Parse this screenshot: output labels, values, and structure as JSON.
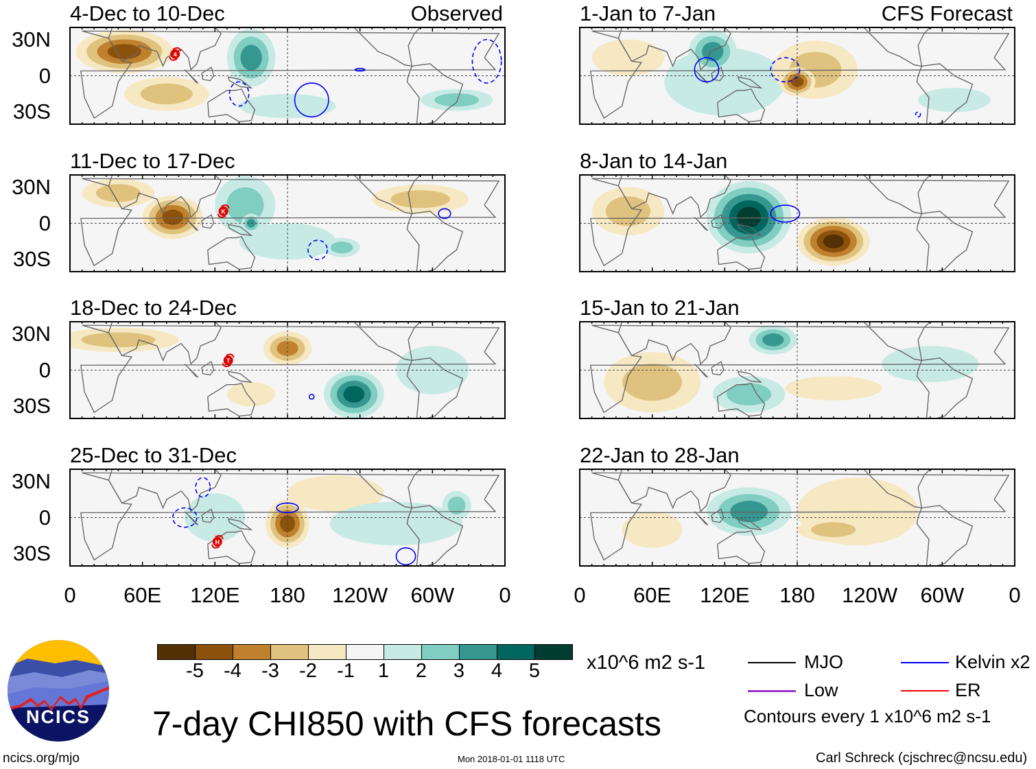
{
  "panels": [
    {
      "title": "4-Dec to 10-Dec",
      "tag": "Observed",
      "column": "left",
      "anomalies": [
        {
          "lon": 45,
          "lat": 20,
          "v": -4,
          "rx": 40,
          "ry": 18
        },
        {
          "lon": 80,
          "lat": -15,
          "v": -2,
          "rx": 35,
          "ry": 14
        },
        {
          "lon": 150,
          "lat": 15,
          "v": 3,
          "rx": 20,
          "ry": 24
        },
        {
          "lon": 180,
          "lat": -25,
          "v": 1,
          "rx": 40,
          "ry": 10
        },
        {
          "lon": 320,
          "lat": -20,
          "v": 2,
          "rx": 30,
          "ry": 9
        }
      ],
      "kelvin": [
        {
          "lon": 200,
          "lat": -20,
          "rx": 14,
          "ry": 14,
          "sign": "positive"
        },
        {
          "lon": 140,
          "lat": -15,
          "rx": 8,
          "ry": 10,
          "sign": "negative"
        },
        {
          "lon": 345,
          "lat": 12,
          "rx": 12,
          "ry": 18,
          "sign": "negative"
        },
        {
          "lon": 240,
          "lat": 5,
          "rx": 4,
          "ry": 1,
          "sign": "positive"
        }
      ],
      "storms": [
        {
          "lon": 87,
          "lat": 18,
          "label": "4"
        }
      ]
    },
    {
      "title": "11-Dec to 17-Dec",
      "tag": "",
      "column": "left",
      "anomalies": [
        {
          "lon": 85,
          "lat": 5,
          "v": -4,
          "rx": 25,
          "ry": 18
        },
        {
          "lon": 40,
          "lat": 25,
          "v": -2,
          "rx": 30,
          "ry": 12
        },
        {
          "lon": 290,
          "lat": 20,
          "v": -2,
          "rx": 40,
          "ry": 12
        },
        {
          "lon": 180,
          "lat": -15,
          "v": 1,
          "rx": 40,
          "ry": 15
        },
        {
          "lon": 145,
          "lat": 15,
          "v": 2,
          "rx": 25,
          "ry": 24
        },
        {
          "lon": 150,
          "lat": 0,
          "v": 3,
          "rx": 8,
          "ry": 8
        },
        {
          "lon": 225,
          "lat": -20,
          "v": 2,
          "rx": 15,
          "ry": 8
        }
      ],
      "kelvin": [
        {
          "lon": 310,
          "lat": 8,
          "rx": 5,
          "ry": 4,
          "sign": "positive"
        },
        {
          "lon": 205,
          "lat": -22,
          "rx": 8,
          "ry": 8,
          "sign": "negative"
        }
      ],
      "storms": [
        {
          "lon": 127,
          "lat": 10,
          "label": "K"
        }
      ]
    },
    {
      "title": "18-Dec to 24-Dec",
      "tag": "",
      "column": "left",
      "anomalies": [
        {
          "lon": 40,
          "lat": 25,
          "v": -2,
          "rx": 50,
          "ry": 10
        },
        {
          "lon": 180,
          "lat": 18,
          "v": -3,
          "rx": 20,
          "ry": 14
        },
        {
          "lon": 150,
          "lat": -20,
          "v": -1,
          "rx": 20,
          "ry": 10
        },
        {
          "lon": 300,
          "lat": 0,
          "v": 1,
          "rx": 30,
          "ry": 20
        },
        {
          "lon": 235,
          "lat": -20,
          "v": 4,
          "rx": 25,
          "ry": 20
        }
      ],
      "kelvin": [
        {
          "lon": 200,
          "lat": -22,
          "rx": 2,
          "ry": 2,
          "sign": "positive"
        }
      ],
      "storms": [
        {
          "lon": 131,
          "lat": 8,
          "label": "T"
        }
      ]
    },
    {
      "title": "25-Dec to 31-Dec",
      "tag": "",
      "column": "left",
      "anomalies": [
        {
          "lon": 220,
          "lat": 20,
          "v": -1,
          "rx": 40,
          "ry": 15
        },
        {
          "lon": 180,
          "lat": -5,
          "v": -4,
          "rx": 18,
          "ry": 20
        },
        {
          "lon": 120,
          "lat": 0,
          "v": 1,
          "rx": 25,
          "ry": 20
        },
        {
          "lon": 270,
          "lat": -5,
          "v": 1,
          "rx": 55,
          "ry": 18
        },
        {
          "lon": 320,
          "lat": 10,
          "v": 2,
          "rx": 12,
          "ry": 12
        }
      ],
      "kelvin": [
        {
          "lon": 180,
          "lat": 8,
          "rx": 9,
          "ry": 4,
          "sign": "positive"
        },
        {
          "lon": 95,
          "lat": 0,
          "rx": 10,
          "ry": 8,
          "sign": "negative"
        },
        {
          "lon": 110,
          "lat": 25,
          "rx": 6,
          "ry": 8,
          "sign": "negative"
        },
        {
          "lon": 278,
          "lat": -32,
          "rx": 8,
          "ry": 7,
          "sign": "positive"
        }
      ],
      "storms": [
        {
          "lon": 122,
          "lat": -20,
          "label": "H"
        }
      ]
    },
    {
      "title": "1-Jan to 7-Jan",
      "tag": "CFS Forecast",
      "column": "right",
      "anomalies": [
        {
          "lon": 120,
          "lat": -5,
          "v": 1,
          "rx": 50,
          "ry": 28
        },
        {
          "lon": 310,
          "lat": -20,
          "v": 1,
          "rx": 30,
          "ry": 10
        },
        {
          "lon": 110,
          "lat": 20,
          "v": 3,
          "rx": 20,
          "ry": 18
        },
        {
          "lon": 195,
          "lat": 5,
          "v": -2,
          "rx": 35,
          "ry": 24
        },
        {
          "lon": 180,
          "lat": -5,
          "v": -4,
          "rx": 15,
          "ry": 12
        },
        {
          "lon": 40,
          "lat": 15,
          "v": -1,
          "rx": 30,
          "ry": 15
        }
      ],
      "kelvin": [
        {
          "lon": 105,
          "lat": 5,
          "rx": 10,
          "ry": 10,
          "sign": "positive"
        },
        {
          "lon": 170,
          "lat": 5,
          "rx": 12,
          "ry": 10,
          "sign": "negative"
        },
        {
          "lon": 280,
          "lat": -32,
          "rx": 2,
          "ry": 2,
          "sign": "negative"
        }
      ],
      "storms": []
    },
    {
      "title": "8-Jan to 14-Jan",
      "tag": "",
      "column": "right",
      "anomalies": [
        {
          "lon": 40,
          "lat": 10,
          "v": -2,
          "rx": 30,
          "ry": 20
        },
        {
          "lon": 210,
          "lat": -15,
          "v": -5,
          "rx": 30,
          "ry": 20
        },
        {
          "lon": 140,
          "lat": 5,
          "v": 5,
          "rx": 35,
          "ry": 30
        }
      ],
      "kelvin": [
        {
          "lon": 170,
          "lat": 8,
          "rx": 12,
          "ry": 7,
          "sign": "positive"
        }
      ],
      "storms": []
    },
    {
      "title": "15-Jan to 21-Jan",
      "tag": "",
      "column": "right",
      "anomalies": [
        {
          "lon": 60,
          "lat": -10,
          "v": -2,
          "rx": 40,
          "ry": 25
        },
        {
          "lon": 210,
          "lat": -15,
          "v": -1,
          "rx": 40,
          "ry": 10
        },
        {
          "lon": 290,
          "lat": 5,
          "v": 1,
          "rx": 40,
          "ry": 15
        },
        {
          "lon": 140,
          "lat": -20,
          "v": 2,
          "rx": 30,
          "ry": 15
        },
        {
          "lon": 160,
          "lat": 25,
          "v": 3,
          "rx": 20,
          "ry": 12
        }
      ],
      "kelvin": [],
      "storms": []
    },
    {
      "title": "22-Jan to 28-Jan",
      "tag": "",
      "column": "right",
      "anomalies": [
        {
          "lon": 60,
          "lat": -10,
          "v": -1,
          "rx": 25,
          "ry": 15
        },
        {
          "lon": 230,
          "lat": 5,
          "v": -1,
          "rx": 50,
          "ry": 28
        },
        {
          "lon": 210,
          "lat": -10,
          "v": -2,
          "rx": 30,
          "ry": 10
        },
        {
          "lon": 140,
          "lat": 5,
          "v": 3,
          "rx": 35,
          "ry": 20
        }
      ],
      "kelvin": [],
      "storms": []
    }
  ],
  "y_ticks": [
    "30N",
    "0",
    "30S"
  ],
  "x_ticks": [
    "0",
    "60E",
    "120E",
    "180",
    "120W",
    "60W",
    "0"
  ],
  "colorbar": {
    "labels": [
      "-5",
      "-4",
      "-3",
      "-2",
      "-1",
      "1",
      "2",
      "3",
      "4",
      "5"
    ],
    "colors": [
      "#543005",
      "#8c510a",
      "#bf812d",
      "#dfc27d",
      "#f6e8c3",
      "#f5f5f5",
      "#c7eae5",
      "#80cdc1",
      "#35978f",
      "#01665e",
      "#003c30"
    ],
    "units": "x10^6 m2 s-1"
  },
  "legend": {
    "mjo": "MJO",
    "kelvin": "Kelvin x2",
    "low": "Low",
    "er": "ER",
    "contours": "Contours every 1 x10^6 m2 s-1",
    "colors": {
      "mjo": "#000000",
      "kelvin": "#0000ff",
      "low": "#9933cc",
      "er": "#ff0000"
    }
  },
  "title": "7-day CHI850 with CFS forecasts",
  "logo": "NCICS",
  "website": "ncics.org/mjo",
  "timestamp": "Mon 2018-01-01 1118 UTC",
  "credit": "Carl Schreck (cjschrec@ncsu.edu)"
}
